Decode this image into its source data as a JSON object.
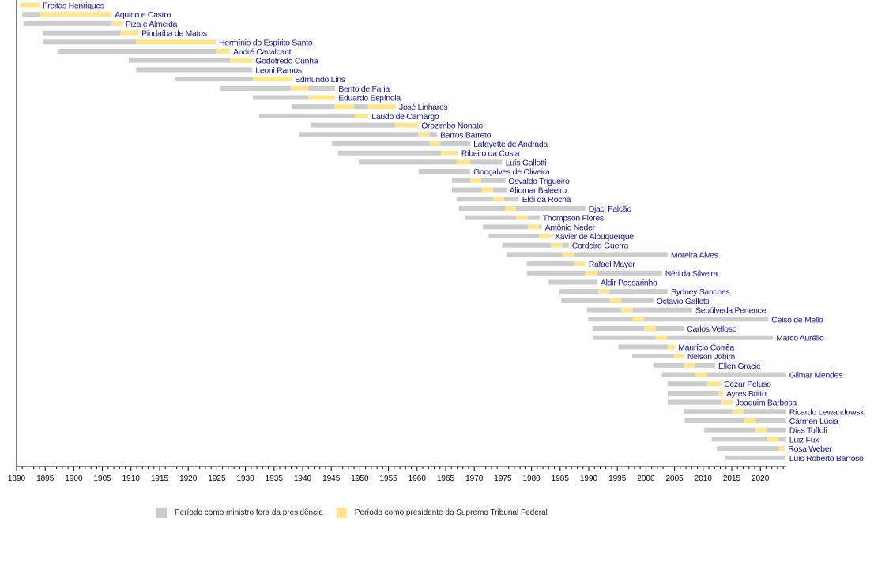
{
  "chart_data": {
    "type": "timeline",
    "title": "",
    "xlabel": "",
    "ylabel": "",
    "xlim": [
      1890,
      2024.5
    ],
    "x_ticks": [
      1890,
      1895,
      1900,
      1905,
      1910,
      1915,
      1920,
      1925,
      1930,
      1935,
      1940,
      1945,
      1950,
      1955,
      1960,
      1965,
      1970,
      1975,
      1980,
      1985,
      1990,
      1995,
      2000,
      2005,
      2010,
      2015,
      2020
    ],
    "minor_tick_step": 1,
    "grid": false,
    "legend_position": "bottom-left",
    "categories_legend": [
      {
        "key": "m",
        "label": "Período como ministro fora da presidência",
        "color": "#cccccc"
      },
      {
        "key": "p",
        "label": "Período como presidente do Supremo Tribunal Federal",
        "color": "#ffe68c"
      }
    ],
    "label_color": "#1414a0",
    "rows": [
      {
        "name": "Freitas Henriques",
        "segments": [
          [
            1890.7,
            1894.0,
            "p"
          ]
        ]
      },
      {
        "name": "Aquino e Castro",
        "segments": [
          [
            1891.0,
            1894.0,
            "m"
          ],
          [
            1894.0,
            1906.6,
            "p"
          ]
        ]
      },
      {
        "name": "Piza e Almeida",
        "segments": [
          [
            1891.2,
            1906.6,
            "m"
          ],
          [
            1906.6,
            1908.5,
            "p"
          ]
        ]
      },
      {
        "name": "Pindaíba de Matos",
        "segments": [
          [
            1894.6,
            1908.2,
            "m"
          ],
          [
            1908.2,
            1911.3,
            "p"
          ]
        ]
      },
      {
        "name": "Hermínio do Espírito Santo",
        "segments": [
          [
            1894.7,
            1910.9,
            "m"
          ],
          [
            1910.9,
            1924.8,
            "p"
          ]
        ]
      },
      {
        "name": "André Cavalcanti",
        "segments": [
          [
            1897.3,
            1924.8,
            "m"
          ],
          [
            1924.8,
            1927.3,
            "p"
          ]
        ]
      },
      {
        "name": "Godofredo Cunha",
        "segments": [
          [
            1909.6,
            1927.3,
            "m"
          ],
          [
            1927.3,
            1931.2,
            "p"
          ]
        ]
      },
      {
        "name": "Leoni Ramos",
        "segments": [
          [
            1910.9,
            1931.2,
            "m"
          ]
        ]
      },
      {
        "name": "Edmundo Lins",
        "segments": [
          [
            1917.6,
            1931.3,
            "m"
          ],
          [
            1931.3,
            1938.1,
            "p"
          ]
        ]
      },
      {
        "name": "Bento de Faria",
        "segments": [
          [
            1925.6,
            1937.9,
            "m"
          ],
          [
            1937.9,
            1941.0,
            "p"
          ],
          [
            1941.0,
            1945.7,
            "m"
          ]
        ]
      },
      {
        "name": "Eduardo Espínola",
        "segments": [
          [
            1931.3,
            1941.0,
            "m"
          ],
          [
            1941.0,
            1945.7,
            "p"
          ]
        ]
      },
      {
        "name": "José Linhares",
        "segments": [
          [
            1938.1,
            1945.6,
            "m"
          ],
          [
            1945.6,
            1949.0,
            "p"
          ],
          [
            1949.0,
            1951.5,
            "m"
          ],
          [
            1951.5,
            1956.3,
            "p"
          ]
        ]
      },
      {
        "name": "Laudo de Camargo",
        "segments": [
          [
            1932.4,
            1949.1,
            "m"
          ],
          [
            1949.1,
            1951.5,
            "p"
          ]
        ]
      },
      {
        "name": "Orozimbo Nonato",
        "segments": [
          [
            1941.4,
            1956.2,
            "m"
          ],
          [
            1956.2,
            1960.2,
            "p"
          ]
        ]
      },
      {
        "name": "Barros Barreto",
        "segments": [
          [
            1939.4,
            1960.2,
            "m"
          ],
          [
            1960.2,
            1962.2,
            "p"
          ],
          [
            1962.2,
            1963.5,
            "m"
          ]
        ]
      },
      {
        "name": "Lafayette de Andrada",
        "segments": [
          [
            1945.1,
            1962.2,
            "m"
          ],
          [
            1962.2,
            1964.0,
            "p"
          ],
          [
            1964.0,
            1969.3,
            "m"
          ]
        ]
      },
      {
        "name": "Ribeiro da Costa",
        "segments": [
          [
            1946.2,
            1964.2,
            "m"
          ],
          [
            1964.2,
            1967.2,
            "p"
          ]
        ]
      },
      {
        "name": "Luís Gallotti",
        "segments": [
          [
            1949.8,
            1966.9,
            "m"
          ],
          [
            1966.9,
            1969.3,
            "p"
          ],
          [
            1969.3,
            1974.9,
            "m"
          ]
        ]
      },
      {
        "name": "Gonçalves de Oliveira",
        "segments": [
          [
            1960.3,
            1969.3,
            "m"
          ]
        ]
      },
      {
        "name": "Osvaldo Trigueiro",
        "segments": [
          [
            1966.1,
            1969.3,
            "m"
          ],
          [
            1969.3,
            1971.2,
            "p"
          ],
          [
            1971.2,
            1975.4,
            "m"
          ]
        ]
      },
      {
        "name": "Aliomar Baleeiro",
        "segments": [
          [
            1966.1,
            1971.3,
            "m"
          ],
          [
            1971.3,
            1973.3,
            "p"
          ],
          [
            1973.3,
            1975.6,
            "m"
          ]
        ]
      },
      {
        "name": "Elói da Rocha",
        "segments": [
          [
            1966.9,
            1973.3,
            "m"
          ],
          [
            1973.3,
            1975.2,
            "p"
          ],
          [
            1975.2,
            1977.8,
            "m"
          ]
        ]
      },
      {
        "name": "Djaci Falcão",
        "segments": [
          [
            1967.3,
            1975.4,
            "m"
          ],
          [
            1975.4,
            1977.3,
            "p"
          ],
          [
            1977.3,
            1989.4,
            "m"
          ]
        ]
      },
      {
        "name": "Thompson Flores",
        "segments": [
          [
            1968.3,
            1977.3,
            "m"
          ],
          [
            1977.3,
            1979.4,
            "p"
          ],
          [
            1979.4,
            1981.4,
            "m"
          ]
        ]
      },
      {
        "name": "Antônio Neder",
        "segments": [
          [
            1971.5,
            1979.4,
            "m"
          ],
          [
            1979.4,
            1981.4,
            "p"
          ],
          [
            1981.4,
            1981.8,
            "m"
          ]
        ]
      },
      {
        "name": "Xavier de Albuquerque",
        "segments": [
          [
            1972.5,
            1981.4,
            "m"
          ],
          [
            1981.4,
            1983.5,
            "p"
          ]
        ]
      },
      {
        "name": "Cordeiro Guerra",
        "segments": [
          [
            1974.9,
            1983.4,
            "m"
          ],
          [
            1983.4,
            1985.4,
            "p"
          ],
          [
            1985.4,
            1986.5,
            "m"
          ]
        ]
      },
      {
        "name": "Moreira Alves",
        "segments": [
          [
            1975.6,
            1985.4,
            "m"
          ],
          [
            1985.4,
            1987.5,
            "p"
          ],
          [
            1987.5,
            2003.8,
            "m"
          ]
        ]
      },
      {
        "name": "Rafael Mayer",
        "segments": [
          [
            1979.2,
            1987.5,
            "m"
          ],
          [
            1987.5,
            1989.4,
            "p"
          ]
        ]
      },
      {
        "name": "Néri da Silveira",
        "segments": [
          [
            1979.2,
            1989.4,
            "m"
          ],
          [
            1989.4,
            1991.5,
            "p"
          ],
          [
            1991.5,
            2002.8,
            "m"
          ]
        ]
      },
      {
        "name": "Aldir Passarinho",
        "segments": [
          [
            1983.0,
            1991.5,
            "m"
          ]
        ]
      },
      {
        "name": "Sydney Sanches",
        "segments": [
          [
            1984.9,
            1991.7,
            "m"
          ],
          [
            1991.7,
            1993.7,
            "p"
          ],
          [
            1993.7,
            2003.8,
            "m"
          ]
        ]
      },
      {
        "name": "Octavio Gallotti",
        "segments": [
          [
            1985.2,
            1993.7,
            "m"
          ],
          [
            1993.7,
            1995.7,
            "p"
          ],
          [
            1995.7,
            2001.3,
            "m"
          ]
        ]
      },
      {
        "name": "Sepúlveda Pertence",
        "segments": [
          [
            1989.7,
            1995.7,
            "m"
          ],
          [
            1995.7,
            1997.7,
            "p"
          ],
          [
            1997.7,
            2008.1,
            "m"
          ]
        ]
      },
      {
        "name": "Celso de Mello",
        "segments": [
          [
            1989.9,
            1997.7,
            "m"
          ],
          [
            1997.7,
            1999.7,
            "p"
          ],
          [
            1999.7,
            2021.4,
            "m"
          ]
        ]
      },
      {
        "name": "Carlos Velloso",
        "segments": [
          [
            1990.7,
            1999.7,
            "m"
          ],
          [
            1999.7,
            2001.7,
            "p"
          ],
          [
            2001.7,
            2006.6,
            "m"
          ]
        ]
      },
      {
        "name": "Marco Aurélio",
        "segments": [
          [
            1990.7,
            2001.7,
            "m"
          ],
          [
            2001.7,
            2003.7,
            "p"
          ],
          [
            2003.7,
            2022.2,
            "m"
          ]
        ]
      },
      {
        "name": "Maurício Corrêa",
        "segments": [
          [
            1995.2,
            2003.8,
            "m"
          ],
          [
            2003.8,
            2005.1,
            "p"
          ]
        ]
      },
      {
        "name": "Nelson Jobim",
        "segments": [
          [
            1997.6,
            2004.9,
            "m"
          ],
          [
            2004.9,
            2006.7,
            "p"
          ]
        ]
      },
      {
        "name": "Ellen Gracie",
        "segments": [
          [
            2001.3,
            2006.7,
            "m"
          ],
          [
            2006.7,
            2008.6,
            "p"
          ],
          [
            2008.6,
            2012.1,
            "m"
          ]
        ]
      },
      {
        "name": "Gilmar Mendes",
        "segments": [
          [
            2002.8,
            2008.6,
            "m"
          ],
          [
            2008.6,
            2010.7,
            "p"
          ],
          [
            2010.7,
            2024.5,
            "m"
          ]
        ]
      },
      {
        "name": "Cezar Peluso",
        "segments": [
          [
            2003.8,
            2010.7,
            "m"
          ],
          [
            2010.7,
            2013.1,
            "p"
          ]
        ]
      },
      {
        "name": "Ayres Britto",
        "segments": [
          [
            2003.8,
            2012.7,
            "m"
          ],
          [
            2012.7,
            2013.5,
            "p"
          ]
        ]
      },
      {
        "name": "Joaquim Barbosa",
        "segments": [
          [
            2003.8,
            2013.2,
            "m"
          ],
          [
            2013.2,
            2015.1,
            "p"
          ]
        ]
      },
      {
        "name": "Ricardo Lewandowski",
        "segments": [
          [
            2006.6,
            2015.1,
            "m"
          ],
          [
            2015.1,
            2017.1,
            "p"
          ],
          [
            2017.1,
            2024.5,
            "m"
          ]
        ]
      },
      {
        "name": "Cármen Lúcia",
        "segments": [
          [
            2006.8,
            2017.1,
            "m"
          ],
          [
            2017.1,
            2019.2,
            "p"
          ],
          [
            2019.2,
            2024.5,
            "m"
          ]
        ]
      },
      {
        "name": "Dias Toffoli",
        "segments": [
          [
            2010.2,
            2019.2,
            "m"
          ],
          [
            2019.2,
            2021.1,
            "p"
          ],
          [
            2021.1,
            2024.5,
            "m"
          ]
        ]
      },
      {
        "name": "Luiz Fux",
        "segments": [
          [
            2011.5,
            2021.1,
            "m"
          ],
          [
            2021.1,
            2023.2,
            "p"
          ],
          [
            2023.2,
            2024.5,
            "m"
          ]
        ]
      },
      {
        "name": "Rosa Weber",
        "segments": [
          [
            2012.4,
            2023.2,
            "m"
          ],
          [
            2023.2,
            2024.3,
            "p"
          ]
        ]
      },
      {
        "name": "Luís Roberto Barroso",
        "segments": [
          [
            2013.9,
            2024.3,
            "m"
          ],
          [
            2024.3,
            2024.5,
            "p"
          ]
        ]
      }
    ]
  }
}
